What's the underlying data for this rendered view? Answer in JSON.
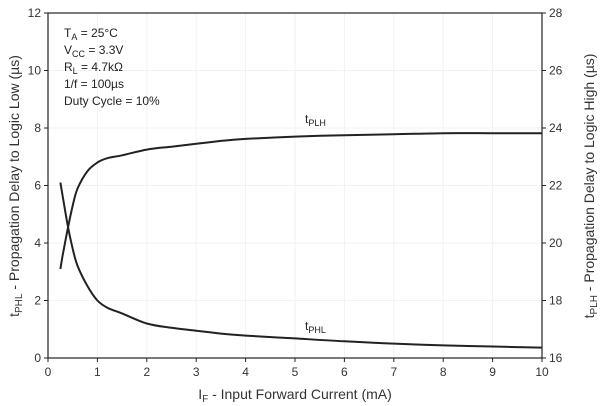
{
  "chart_data": {
    "type": "line",
    "xlabel": {
      "main": "I",
      "sub": "F",
      "rest": " - Input Forward Current (mA)"
    },
    "ylabel_left": {
      "main": "t",
      "sub": "PHL",
      "rest": " - Propagation Delay to Logic Low (µs)"
    },
    "ylabel_right": {
      "main": "t",
      "sub": "PLH",
      "rest": " - Propagation Delay to Logic High (µs)"
    },
    "xlim": [
      0,
      10
    ],
    "ylim_left": [
      0,
      12
    ],
    "ylim_right": [
      16,
      28
    ],
    "x_ticks": [
      "0",
      "1",
      "2",
      "3",
      "4",
      "5",
      "6",
      "7",
      "8",
      "9",
      "10"
    ],
    "y_left_ticks": [
      "0",
      "2",
      "4",
      "6",
      "8",
      "10",
      "12"
    ],
    "y_right_ticks": [
      "16",
      "18",
      "20",
      "22",
      "24",
      "26",
      "28"
    ],
    "grid": true,
    "conditions": [
      {
        "main": "T",
        "sub": "A",
        "rest": " = 25°C"
      },
      {
        "main": "V",
        "sub": "CC",
        "rest": " = 3.3V"
      },
      {
        "main": "R",
        "sub": "L",
        "rest": " = 4.7kΩ"
      },
      {
        "main": "1/f = 100µs",
        "sub": "",
        "rest": ""
      },
      {
        "main": "Duty Cycle = 10%",
        "sub": "",
        "rest": ""
      }
    ],
    "series": [
      {
        "name": {
          "main": "t",
          "sub": "PLH"
        },
        "axis": "right",
        "x": [
          0.25,
          0.3,
          0.4,
          0.5,
          0.6,
          0.8,
          1.0,
          1.2,
          1.5,
          2.0,
          2.5,
          3.0,
          3.5,
          4.0,
          5.0,
          6.0,
          7.0,
          8.0,
          9.0,
          10.0
        ],
        "y": [
          19.1,
          19.6,
          20.5,
          21.3,
          21.9,
          22.5,
          22.8,
          22.95,
          23.05,
          23.25,
          23.35,
          23.45,
          23.55,
          23.62,
          23.7,
          23.75,
          23.78,
          23.82,
          23.82,
          23.82
        ]
      },
      {
        "name": {
          "main": "t",
          "sub": "PHL"
        },
        "axis": "left",
        "x": [
          0.25,
          0.3,
          0.4,
          0.5,
          0.6,
          0.8,
          1.0,
          1.2,
          1.5,
          2.0,
          2.5,
          3.0,
          3.5,
          4.0,
          5.0,
          6.0,
          7.0,
          8.0,
          9.0,
          10.0
        ],
        "y": [
          6.1,
          5.6,
          4.6,
          3.8,
          3.2,
          2.5,
          2.0,
          1.75,
          1.55,
          1.2,
          1.05,
          0.95,
          0.85,
          0.78,
          0.68,
          0.58,
          0.5,
          0.44,
          0.4,
          0.36
        ]
      }
    ]
  }
}
